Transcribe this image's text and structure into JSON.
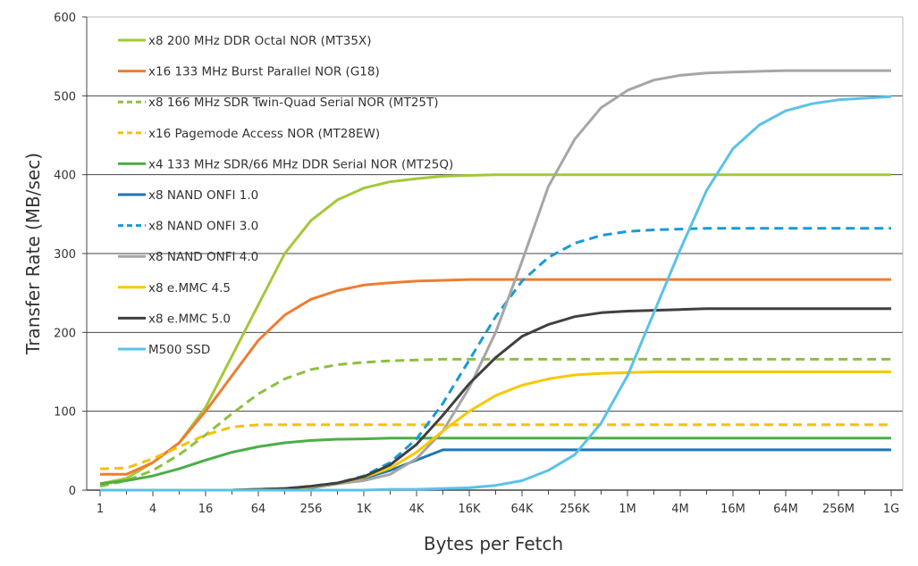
{
  "chart_data": {
    "type": "line",
    "title": "",
    "xlabel": "Bytes per Fetch",
    "ylabel": "Transfer Rate (MB/sec)",
    "x_scale": "log2",
    "x": [
      1,
      2,
      4,
      8,
      16,
      32,
      64,
      128,
      256,
      512,
      1024,
      2048,
      4096,
      8192,
      16384,
      32768,
      65536,
      131072,
      262144,
      524288,
      1048576,
      2097152,
      4194304,
      8388608,
      16777216,
      33554432,
      67108864,
      134217728,
      268435456,
      536870912,
      1073741824
    ],
    "x_tick_labels": [
      "1",
      "4",
      "16",
      "64",
      "256",
      "1K",
      "4K",
      "16K",
      "64K",
      "256K",
      "1M",
      "4M",
      "16M",
      "64M",
      "256M",
      "1G"
    ],
    "y_ticks": [
      0,
      100,
      200,
      300,
      400,
      500,
      600
    ],
    "ylim": [
      0,
      600
    ],
    "grid": "horizontal",
    "legend_placement": "top-left",
    "series": [
      {
        "name": "x8 200 MHz DDR Octal NOR (MT35X)",
        "color": "#a3c83a",
        "dashed": false,
        "values": [
          8,
          15,
          35,
          60,
          105,
          170,
          235,
          300,
          342,
          368,
          383,
          391,
          395,
          398,
          399,
          400,
          400,
          400,
          400,
          400,
          400,
          400,
          400,
          400,
          400,
          400,
          400,
          400,
          400,
          400,
          400
        ]
      },
      {
        "name": "x16 133 MHz Burst Parallel NOR (G18)",
        "color": "#ed7d31",
        "dashed": false,
        "values": [
          20,
          20,
          35,
          60,
          100,
          145,
          190,
          222,
          242,
          253,
          260,
          263,
          265,
          266,
          267,
          267,
          267,
          267,
          267,
          267,
          267,
          267,
          267,
          267,
          267,
          267,
          267,
          267,
          267,
          267,
          267
        ]
      },
      {
        "name": "x8 166 MHz SDR Twin-Quad Serial NOR (MT25T)",
        "color": "#8dbf3f",
        "dashed": true,
        "values": [
          5,
          12,
          25,
          45,
          70,
          97,
          122,
          141,
          153,
          159,
          162,
          164,
          165,
          166,
          166,
          166,
          166,
          166,
          166,
          166,
          166,
          166,
          166,
          166,
          166,
          166,
          166,
          166,
          166,
          166,
          166
        ]
      },
      {
        "name": "x16 Pagemode Access  NOR (MT28EW)",
        "color": "#f5c010",
        "dashed": true,
        "values": [
          27,
          28,
          40,
          55,
          70,
          80,
          83,
          83,
          83,
          83,
          83,
          83,
          83,
          83,
          83,
          83,
          83,
          83,
          83,
          83,
          83,
          83,
          83,
          83,
          83,
          83,
          83,
          83,
          83,
          83,
          83
        ]
      },
      {
        "name": "x4 133 MHz SDR/66 MHz DDR Serial NOR (MT25Q)",
        "color": "#4cae47",
        "dashed": false,
        "values": [
          8,
          12,
          18,
          27,
          38,
          48,
          55,
          60,
          63,
          64.5,
          65,
          66,
          66,
          66,
          66,
          66,
          66,
          66,
          66,
          66,
          66,
          66,
          66,
          66,
          66,
          66,
          66,
          66,
          66,
          66,
          66
        ]
      },
      {
        "name": "x8 NAND ONFI 1.0",
        "color": "#1f76b6",
        "dashed": false,
        "values": [
          0,
          0,
          0,
          0,
          0,
          0,
          1,
          2,
          3,
          8,
          15,
          25,
          38,
          51,
          51,
          51,
          51,
          51,
          51,
          51,
          51,
          51,
          51,
          51,
          51,
          51,
          51,
          51,
          51,
          51,
          51
        ]
      },
      {
        "name": "x8 NAND ONFI 3.0",
        "color": "#1a9ad6",
        "dashed": true,
        "values": [
          0,
          0,
          0,
          0,
          0,
          0,
          1,
          2,
          5,
          9,
          18,
          35,
          65,
          110,
          165,
          220,
          265,
          295,
          313,
          323,
          328,
          330,
          331,
          332,
          332,
          332,
          332,
          332,
          332,
          332,
          332
        ]
      },
      {
        "name": "x8 NAND ONFI 4.0",
        "color": "#a6a6a6",
        "dashed": false,
        "values": [
          0,
          0,
          0,
          0,
          0,
          0,
          1,
          2,
          4,
          8,
          12,
          20,
          40,
          75,
          130,
          200,
          290,
          385,
          445,
          485,
          507,
          520,
          526,
          529,
          530,
          531,
          532,
          532,
          532,
          532,
          532
        ]
      },
      {
        "name": "x8 e.MMC 4.5",
        "color": "#f7c800",
        "dashed": false,
        "values": [
          0,
          0,
          0,
          0,
          0,
          0,
          1,
          2,
          4,
          9,
          16,
          28,
          48,
          75,
          100,
          120,
          133,
          141,
          146,
          148,
          149,
          150,
          150,
          150,
          150,
          150,
          150,
          150,
          150,
          150,
          150
        ]
      },
      {
        "name": "x8 e.MMC 5.0",
        "color": "#404040",
        "dashed": false,
        "values": [
          0,
          0,
          0,
          0,
          0,
          0,
          1,
          2,
          5,
          9,
          17,
          32,
          58,
          95,
          135,
          168,
          195,
          210,
          220,
          225,
          227,
          228,
          229,
          230,
          230,
          230,
          230,
          230,
          230,
          230,
          230
        ]
      },
      {
        "name": "M500 SSD",
        "color": "#5bc2e7",
        "dashed": false,
        "values": [
          0,
          0,
          0,
          0,
          0,
          0,
          0,
          0,
          0,
          0,
          0,
          1,
          1,
          2,
          3,
          6,
          12,
          25,
          45,
          85,
          145,
          225,
          305,
          380,
          433,
          463,
          481,
          490,
          495,
          497,
          499
        ]
      }
    ]
  }
}
